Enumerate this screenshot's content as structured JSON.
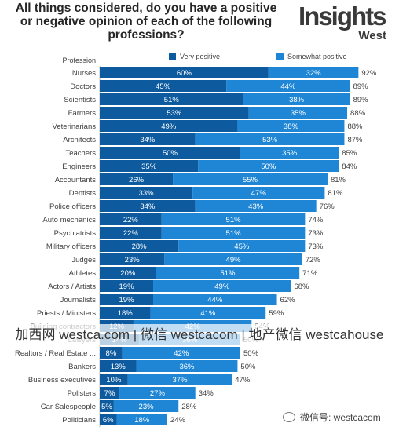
{
  "title_lines": [
    "All things considered, do you have a positive",
    "or negative opinion of each of the following",
    "professions?"
  ],
  "logo": {
    "main": "Insights",
    "sub": "West"
  },
  "watermark": "加西网 westca.com | 微信 westcacom | 地产微信 westcahouse",
  "wechat_id": "微信号: westcacom",
  "colors": {
    "very_positive": "#0d5a9e",
    "somewhat_positive": "#1f86d6",
    "label": "#404040"
  },
  "chart_data": {
    "type": "bar",
    "orientation": "horizontal",
    "stacked": true,
    "category_axis_label": "Profession",
    "categories": [
      "Nurses",
      "Doctors",
      "Scientists",
      "Farmers",
      "Veterinarians",
      "Architects",
      "Teachers",
      "Engineers",
      "Accountants",
      "Dentists",
      "Police officers",
      "Auto mechanics",
      "Psychiatrists",
      "Military officers",
      "Judges",
      "Athletes",
      "Actors / Artists",
      "Journalists",
      "Priests / Ministers",
      "Building contractors",
      "Lawyers",
      "Realtors / Real Estate ...",
      "Bankers",
      "Business executives",
      "Pollsters",
      "Car Salespeople",
      "Politicians"
    ],
    "series": [
      {
        "name": "Very positive",
        "values": [
          60,
          45,
          51,
          53,
          49,
          34,
          50,
          35,
          26,
          33,
          34,
          22,
          22,
          28,
          23,
          20,
          19,
          19,
          18,
          12,
          14,
          8,
          13,
          10,
          7,
          5,
          6
        ]
      },
      {
        "name": "Somewhat positive",
        "values": [
          32,
          44,
          38,
          35,
          38,
          53,
          35,
          50,
          55,
          47,
          43,
          51,
          51,
          45,
          49,
          51,
          49,
          44,
          41,
          42,
          36,
          42,
          36,
          37,
          27,
          23,
          18
        ]
      }
    ],
    "totals": [
      92,
      89,
      89,
      88,
      88,
      87,
      85,
      84,
      81,
      81,
      76,
      74,
      73,
      73,
      72,
      71,
      68,
      62,
      59,
      54,
      50,
      50,
      50,
      47,
      34,
      28,
      24
    ],
    "value_format": "{v}%",
    "legend_position": "top",
    "xlim": [
      0,
      100
    ]
  }
}
